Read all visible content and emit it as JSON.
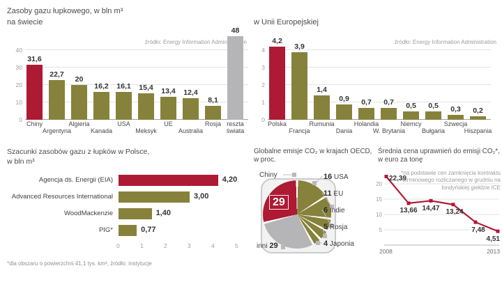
{
  "colors": {
    "red": "#ae1a33",
    "olive": "#87823b",
    "gray": "#b5b5b7",
    "grid": "#e3e3e3",
    "text": "#3c3c3c",
    "muted": "#9b9b9b"
  },
  "chart_data": [
    {
      "id": "world-shale-resources",
      "type": "bar",
      "title": "Zasoby gazu łupkowego, w bln m³",
      "subtitle": "na świecie",
      "source": "źródło: Energy Information Administration",
      "categories": [
        "Chiny",
        "Argentyna",
        "Algieria",
        "Kanada",
        "USA",
        "Meksyk",
        "UE",
        "Australia",
        "Rosja",
        "reszta świata"
      ],
      "values": [
        31.6,
        22.7,
        20,
        16.2,
        16.1,
        15.4,
        13.4,
        12.4,
        8.1,
        48
      ],
      "value_labels": [
        "31,6",
        "22,7",
        "20",
        "16,2",
        "16,1",
        "15,4",
        "13,4",
        "12,4",
        "8,1",
        "48"
      ],
      "bar_colors": [
        "red",
        "olive",
        "olive",
        "olive",
        "olive",
        "olive",
        "olive",
        "olive",
        "olive",
        "gray"
      ],
      "ylim": [
        0,
        40
      ],
      "yticks": [
        0,
        10,
        20,
        30,
        40
      ]
    },
    {
      "id": "eu-shale-resources",
      "type": "bar",
      "title": "w Unii Europejskiej",
      "source": "źródło: Energy Information Administration",
      "categories": [
        "Polska",
        "Francja",
        "Rumunia",
        "Dania",
        "Holandia",
        "W. Brytania",
        "Niemcy",
        "Bułgaria",
        "Szwecja",
        "Hiszpania"
      ],
      "values": [
        4.2,
        3.9,
        1.4,
        0.9,
        0.7,
        0.7,
        0.5,
        0.5,
        0.3,
        0.2
      ],
      "value_labels": [
        "4,2",
        "3,9",
        "1,4",
        "0,9",
        "0,7",
        "0,7",
        "0,5",
        "0,5",
        "0,3",
        "0,2"
      ],
      "bar_colors": [
        "red",
        "olive",
        "olive",
        "olive",
        "olive",
        "olive",
        "olive",
        "olive",
        "olive",
        "olive"
      ],
      "ylim": [
        0,
        4
      ],
      "yticks": [
        0,
        1,
        2,
        3,
        4
      ]
    },
    {
      "id": "poland-estimates",
      "type": "bar",
      "orientation": "horizontal",
      "title": "Szacunki zasobów gazu z łupków w Polsce,",
      "subtitle": "w bln m³",
      "categories": [
        "Agencja ds. Energii (EIA)",
        "Advanced Resources International",
        "WoodMackenzie",
        "PIG*"
      ],
      "values": [
        4.2,
        3.0,
        1.4,
        0.77
      ],
      "value_labels": [
        "4,20",
        "3,00",
        "1,40",
        "0,77"
      ],
      "bar_colors": [
        "red",
        "olive",
        "olive",
        "olive"
      ],
      "xlim": [
        0,
        5
      ],
      "xticks": [
        0,
        1,
        2,
        3,
        4,
        5
      ],
      "footnote": "*dla obszaru o powierzchni 41,1 tys. km², źródło: instytucje"
    },
    {
      "id": "oecd-co2-emissions",
      "type": "pie",
      "title": "Globalne emisje CO₂ w krajach OECD,",
      "subtitle": "w proc.",
      "slices": [
        {
          "label": "Chiny",
          "value": 29,
          "color": "red"
        },
        {
          "label": "USA",
          "value": 16,
          "color": "olive"
        },
        {
          "label": "EU",
          "value": 11,
          "color": "olive"
        },
        {
          "label": "Indie",
          "value": 6,
          "color": "olive"
        },
        {
          "label": "Rosja",
          "value": 5,
          "color": "olive"
        },
        {
          "label": "Japonia",
          "value": 4,
          "color": "olive"
        },
        {
          "label": "inni",
          "value": 29,
          "color": "gray"
        }
      ],
      "center_label": "29"
    },
    {
      "id": "co2-allowance-price",
      "type": "line",
      "title": "Średnia cena uprawnień do emisji CO₂*,",
      "subtitle": "w euro za tonę",
      "footnote": "*na podstawie cen zamknięcia kontraktu terminowego rozliczanego w grudniu na londyńskiej giełdzie ICE",
      "x": [
        2008,
        2009,
        2010,
        2011,
        2012,
        2013
      ],
      "x_labels": [
        "2008",
        "2013"
      ],
      "values": [
        22.39,
        13.66,
        14.47,
        13.24,
        7.48,
        4.51
      ],
      "value_labels": [
        "22,39",
        "13,66",
        "14,47",
        "13,24",
        "7,48",
        "4,51"
      ],
      "ylim": [
        0,
        25
      ],
      "yticks": [
        5,
        10,
        15,
        20
      ],
      "line_color": "red"
    }
  ]
}
